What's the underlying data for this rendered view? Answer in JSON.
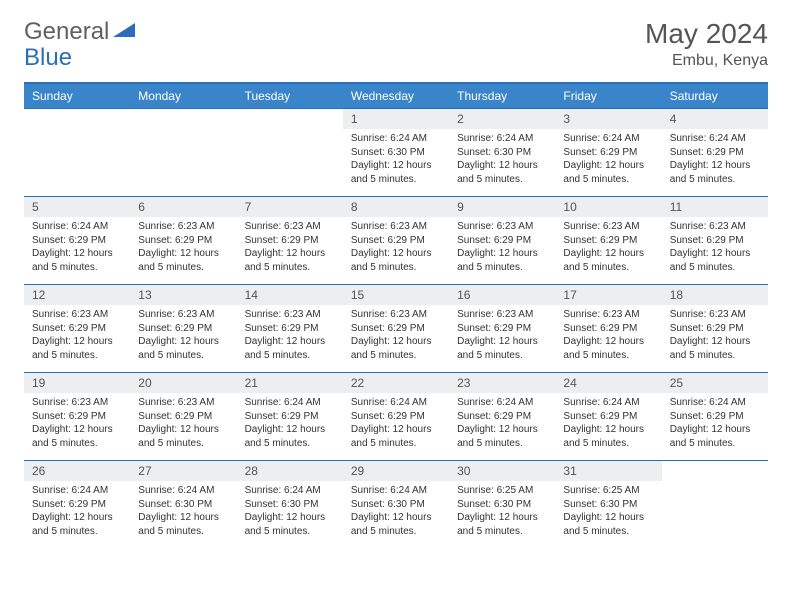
{
  "logo": {
    "part1": "General",
    "part2": "Blue"
  },
  "title": "May 2024",
  "location": "Embu, Kenya",
  "colors": {
    "header_bg": "#3a85c9",
    "border": "#2a6ebb",
    "daynum_bg": "#eceef0",
    "text": "#333333",
    "title_text": "#555555"
  },
  "day_headers": [
    "Sunday",
    "Monday",
    "Tuesday",
    "Wednesday",
    "Thursday",
    "Friday",
    "Saturday"
  ],
  "weeks": [
    [
      {
        "n": "",
        "sr": "",
        "ss": "",
        "dl": ""
      },
      {
        "n": "",
        "sr": "",
        "ss": "",
        "dl": ""
      },
      {
        "n": "",
        "sr": "",
        "ss": "",
        "dl": ""
      },
      {
        "n": "1",
        "sr": "6:24 AM",
        "ss": "6:30 PM",
        "dl": "12 hours and 5 minutes."
      },
      {
        "n": "2",
        "sr": "6:24 AM",
        "ss": "6:30 PM",
        "dl": "12 hours and 5 minutes."
      },
      {
        "n": "3",
        "sr": "6:24 AM",
        "ss": "6:29 PM",
        "dl": "12 hours and 5 minutes."
      },
      {
        "n": "4",
        "sr": "6:24 AM",
        "ss": "6:29 PM",
        "dl": "12 hours and 5 minutes."
      }
    ],
    [
      {
        "n": "5",
        "sr": "6:24 AM",
        "ss": "6:29 PM",
        "dl": "12 hours and 5 minutes."
      },
      {
        "n": "6",
        "sr": "6:23 AM",
        "ss": "6:29 PM",
        "dl": "12 hours and 5 minutes."
      },
      {
        "n": "7",
        "sr": "6:23 AM",
        "ss": "6:29 PM",
        "dl": "12 hours and 5 minutes."
      },
      {
        "n": "8",
        "sr": "6:23 AM",
        "ss": "6:29 PM",
        "dl": "12 hours and 5 minutes."
      },
      {
        "n": "9",
        "sr": "6:23 AM",
        "ss": "6:29 PM",
        "dl": "12 hours and 5 minutes."
      },
      {
        "n": "10",
        "sr": "6:23 AM",
        "ss": "6:29 PM",
        "dl": "12 hours and 5 minutes."
      },
      {
        "n": "11",
        "sr": "6:23 AM",
        "ss": "6:29 PM",
        "dl": "12 hours and 5 minutes."
      }
    ],
    [
      {
        "n": "12",
        "sr": "6:23 AM",
        "ss": "6:29 PM",
        "dl": "12 hours and 5 minutes."
      },
      {
        "n": "13",
        "sr": "6:23 AM",
        "ss": "6:29 PM",
        "dl": "12 hours and 5 minutes."
      },
      {
        "n": "14",
        "sr": "6:23 AM",
        "ss": "6:29 PM",
        "dl": "12 hours and 5 minutes."
      },
      {
        "n": "15",
        "sr": "6:23 AM",
        "ss": "6:29 PM",
        "dl": "12 hours and 5 minutes."
      },
      {
        "n": "16",
        "sr": "6:23 AM",
        "ss": "6:29 PM",
        "dl": "12 hours and 5 minutes."
      },
      {
        "n": "17",
        "sr": "6:23 AM",
        "ss": "6:29 PM",
        "dl": "12 hours and 5 minutes."
      },
      {
        "n": "18",
        "sr": "6:23 AM",
        "ss": "6:29 PM",
        "dl": "12 hours and 5 minutes."
      }
    ],
    [
      {
        "n": "19",
        "sr": "6:23 AM",
        "ss": "6:29 PM",
        "dl": "12 hours and 5 minutes."
      },
      {
        "n": "20",
        "sr": "6:23 AM",
        "ss": "6:29 PM",
        "dl": "12 hours and 5 minutes."
      },
      {
        "n": "21",
        "sr": "6:24 AM",
        "ss": "6:29 PM",
        "dl": "12 hours and 5 minutes."
      },
      {
        "n": "22",
        "sr": "6:24 AM",
        "ss": "6:29 PM",
        "dl": "12 hours and 5 minutes."
      },
      {
        "n": "23",
        "sr": "6:24 AM",
        "ss": "6:29 PM",
        "dl": "12 hours and 5 minutes."
      },
      {
        "n": "24",
        "sr": "6:24 AM",
        "ss": "6:29 PM",
        "dl": "12 hours and 5 minutes."
      },
      {
        "n": "25",
        "sr": "6:24 AM",
        "ss": "6:29 PM",
        "dl": "12 hours and 5 minutes."
      }
    ],
    [
      {
        "n": "26",
        "sr": "6:24 AM",
        "ss": "6:29 PM",
        "dl": "12 hours and 5 minutes."
      },
      {
        "n": "27",
        "sr": "6:24 AM",
        "ss": "6:30 PM",
        "dl": "12 hours and 5 minutes."
      },
      {
        "n": "28",
        "sr": "6:24 AM",
        "ss": "6:30 PM",
        "dl": "12 hours and 5 minutes."
      },
      {
        "n": "29",
        "sr": "6:24 AM",
        "ss": "6:30 PM",
        "dl": "12 hours and 5 minutes."
      },
      {
        "n": "30",
        "sr": "6:25 AM",
        "ss": "6:30 PM",
        "dl": "12 hours and 5 minutes."
      },
      {
        "n": "31",
        "sr": "6:25 AM",
        "ss": "6:30 PM",
        "dl": "12 hours and 5 minutes."
      },
      {
        "n": "",
        "sr": "",
        "ss": "",
        "dl": ""
      }
    ]
  ],
  "labels": {
    "sunrise_prefix": "Sunrise: ",
    "sunset_prefix": "Sunset: ",
    "daylight_prefix": "Daylight: "
  }
}
